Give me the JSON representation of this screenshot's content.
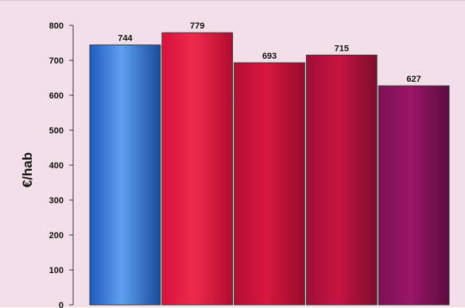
{
  "chart_data": {
    "type": "bar",
    "title": "",
    "xlabel": "",
    "ylabel": "€/hab",
    "ylim": [
      0,
      800
    ],
    "yticks": [
      0,
      100,
      200,
      300,
      400,
      500,
      600,
      700,
      800
    ],
    "grid": false,
    "legend": "none",
    "bars": [
      {
        "value": 744,
        "label": "744",
        "colors": [
          "#1e5bbf",
          "#5fa0f0",
          "#1a4a9c"
        ]
      },
      {
        "value": 779,
        "label": "779",
        "colors": [
          "#d8123c",
          "#ee2a4d",
          "#b10c2e"
        ]
      },
      {
        "value": 693,
        "label": "693",
        "colors": [
          "#b40e34",
          "#d8183f",
          "#990b2b"
        ]
      },
      {
        "value": 715,
        "label": "715",
        "colors": [
          "#9f0f35",
          "#c61443",
          "#7e0c2b"
        ]
      },
      {
        "value": 627,
        "label": "627",
        "colors": [
          "#7b1152",
          "#9b1566",
          "#5a0c3f"
        ]
      }
    ]
  }
}
